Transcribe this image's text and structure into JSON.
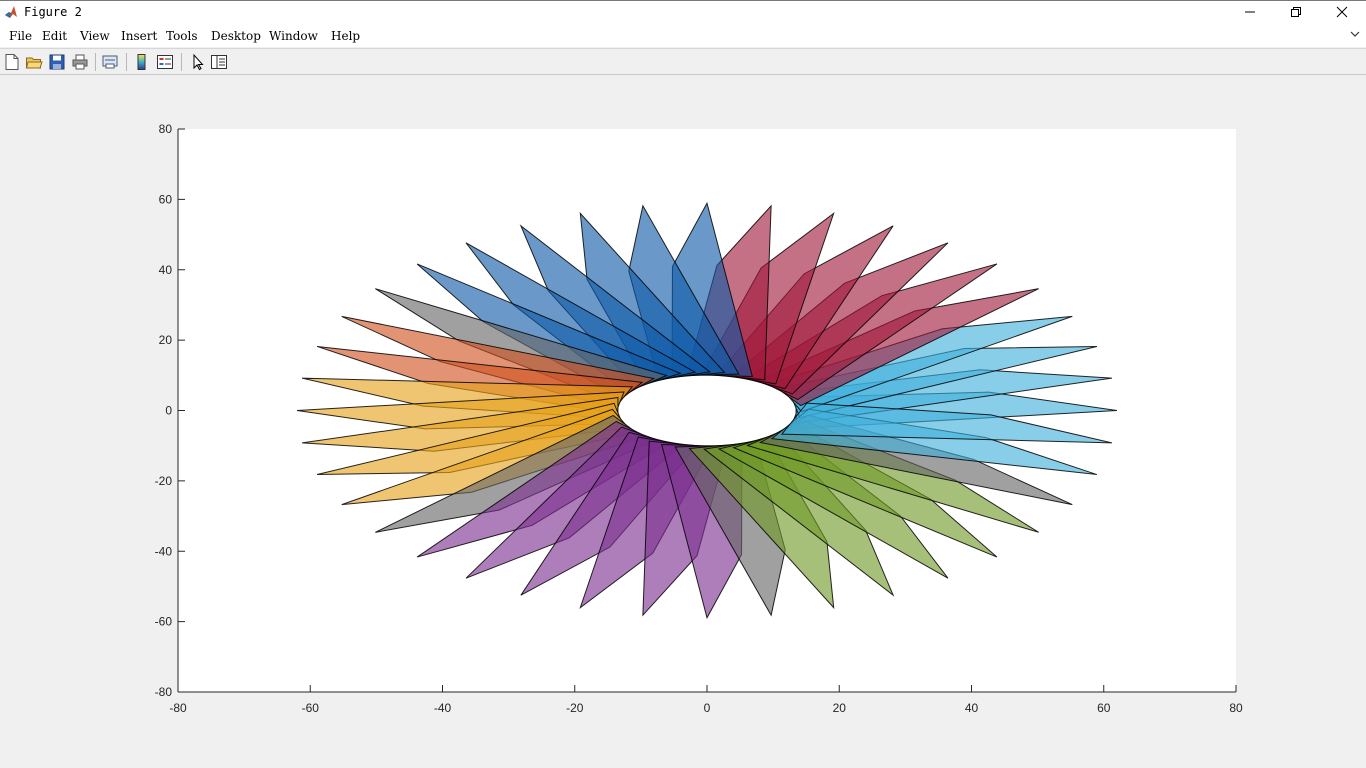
{
  "window": {
    "title": "Figure 2",
    "icon": "matlab-logo-icon",
    "controls": [
      "minimize-icon",
      "restore-icon",
      "close-icon"
    ]
  },
  "menubar": {
    "items": [
      "File",
      "Edit",
      "View",
      "Insert",
      "Tools",
      "Desktop",
      "Window",
      "Help"
    ],
    "expand_icon": "expand-arrow-icon"
  },
  "toolbar": {
    "buttons": [
      "new-figure-icon",
      "open-file-icon",
      "save-icon",
      "print-icon",
      "link-plot-icon",
      "insert-colorbar-icon",
      "insert-legend-icon",
      "edit-plot-arrow-icon",
      "show-plot-tools-icon"
    ]
  },
  "colors": {
    "blue": "#0f5aa8",
    "red": "#a0183a",
    "cyan": "#3fb0dc",
    "green": "#6f9a26",
    "purple": "#7b2e8e",
    "yellow": "#e7a21a",
    "orange": "#d0501e"
  },
  "chart_data": {
    "type": "pinwheel-polygons",
    "xlim": [
      -80,
      80
    ],
    "ylim": [
      -80,
      80
    ],
    "xticks": [
      -80,
      -60,
      -40,
      -20,
      0,
      20,
      40,
      60,
      80
    ],
    "yticks": [
      -80,
      -60,
      -40,
      -20,
      0,
      20,
      40,
      60,
      80
    ],
    "grid": false,
    "legend": "none"
  }
}
